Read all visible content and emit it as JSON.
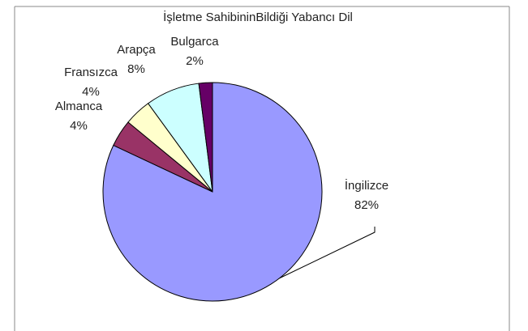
{
  "chart_data": {
    "type": "pie",
    "title": "İşletme SahibininBildiği Yabancı Dil",
    "categories": [
      "İngilizce",
      "Almanca",
      "Fransızca",
      "Arapça",
      "Bulgarca"
    ],
    "values": [
      82,
      4,
      4,
      8,
      2
    ],
    "value_labels": [
      "82%",
      "4%",
      "4%",
      "8%",
      "2%"
    ],
    "colors": [
      "#9999ff",
      "#993366",
      "#ffffcc",
      "#ccffff",
      "#660066"
    ]
  }
}
